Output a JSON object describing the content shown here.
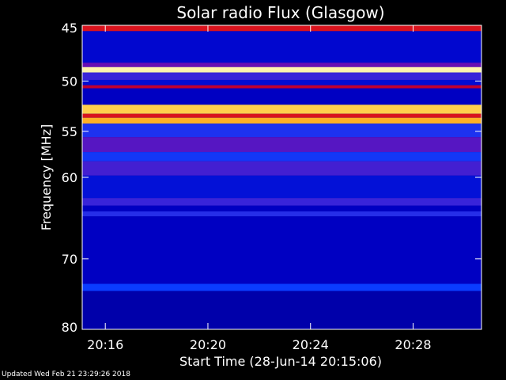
{
  "chart_data": {
    "type": "heatmap",
    "title": "Solar radio Flux (Glasgow)",
    "xlabel": "Start Time (28-Jun-14 20:15:06)",
    "ylabel": "Frequency [MHz]",
    "x_range": [
      "20:15:06",
      "20:30:40"
    ],
    "x_ticks": [
      "20:16",
      "20:20",
      "20:24",
      "20:28"
    ],
    "ylim": [
      45,
      80
    ],
    "y_ticks": [
      45,
      50,
      55,
      60,
      70,
      80
    ],
    "y_scale": "log",
    "colormap": [
      "#000033",
      "#0000c8",
      "#0a3cff",
      "#8000a0",
      "#c00030",
      "#ff3000",
      "#ff9000",
      "#ffe060",
      "#ffffe0"
    ],
    "bands": [
      {
        "from_mhz": 45.0,
        "to_mhz": 45.5,
        "level": 0.55
      },
      {
        "from_mhz": 45.5,
        "to_mhz": 48.3,
        "level": 0.14
      },
      {
        "from_mhz": 48.3,
        "to_mhz": 48.7,
        "level": 0.35
      },
      {
        "from_mhz": 48.7,
        "to_mhz": 49.2,
        "level": 0.95
      },
      {
        "from_mhz": 49.2,
        "to_mhz": 49.9,
        "level": 0.3
      },
      {
        "from_mhz": 49.9,
        "to_mhz": 50.4,
        "level": 0.15
      },
      {
        "from_mhz": 50.4,
        "to_mhz": 50.7,
        "level": 0.5
      },
      {
        "from_mhz": 50.7,
        "to_mhz": 52.3,
        "level": 0.12
      },
      {
        "from_mhz": 52.3,
        "to_mhz": 53.2,
        "level": 0.85
      },
      {
        "from_mhz": 53.2,
        "to_mhz": 53.6,
        "level": 0.55
      },
      {
        "from_mhz": 53.6,
        "to_mhz": 54.2,
        "level": 0.8
      },
      {
        "from_mhz": 54.2,
        "to_mhz": 55.6,
        "level": 0.27
      },
      {
        "from_mhz": 55.6,
        "to_mhz": 57.2,
        "level": 0.33
      },
      {
        "from_mhz": 57.2,
        "to_mhz": 58.2,
        "level": 0.26
      },
      {
        "from_mhz": 58.2,
        "to_mhz": 59.8,
        "level": 0.31
      },
      {
        "from_mhz": 59.8,
        "to_mhz": 62.4,
        "level": 0.16
      },
      {
        "from_mhz": 62.4,
        "to_mhz": 63.3,
        "level": 0.3
      },
      {
        "from_mhz": 63.3,
        "to_mhz": 64.0,
        "level": 0.12
      },
      {
        "from_mhz": 64.0,
        "to_mhz": 64.6,
        "level": 0.28
      },
      {
        "from_mhz": 64.6,
        "to_mhz": 73.4,
        "level": 0.12
      },
      {
        "from_mhz": 73.4,
        "to_mhz": 74.4,
        "level": 0.25
      },
      {
        "from_mhz": 74.4,
        "to_mhz": 80.0,
        "level": 0.1
      }
    ]
  },
  "footer": {
    "updated": "Updated Wed Feb 21 23:29:26 2018"
  }
}
